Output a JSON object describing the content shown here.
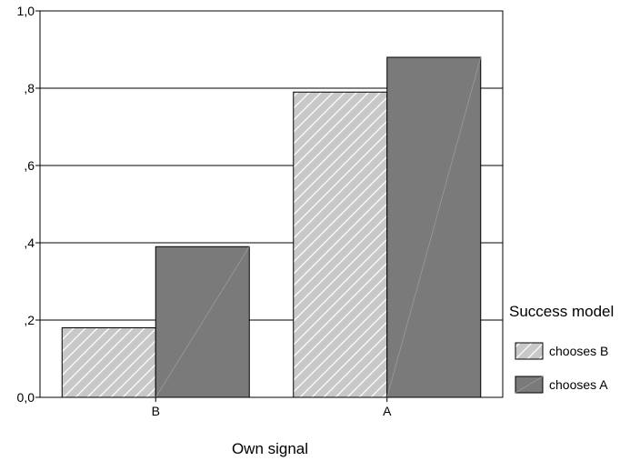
{
  "chart_data": {
    "type": "bar",
    "categories": [
      "B",
      "A"
    ],
    "series": [
      {
        "name": "chooses B",
        "values": [
          0.18,
          0.79
        ],
        "color": "#c8c8c8",
        "pattern": "diagonal-hatch"
      },
      {
        "name": "chooses A",
        "values": [
          0.39,
          0.88
        ],
        "color": "#7a7a7a",
        "pattern": "solid"
      }
    ],
    "xlabel": "Own signal",
    "ylabel": "",
    "ylim": [
      0,
      1.0
    ],
    "yticks": [
      {
        "value": 0.0,
        "label": "0,0"
      },
      {
        "value": 0.2,
        "label": ",2"
      },
      {
        "value": 0.4,
        "label": ",4"
      },
      {
        "value": 0.6,
        "label": ",6"
      },
      {
        "value": 0.8,
        "label": ",8"
      },
      {
        "value": 1.0,
        "label": "1,0"
      }
    ],
    "grid": true,
    "legend": {
      "title": "Success model",
      "position": "right"
    }
  }
}
